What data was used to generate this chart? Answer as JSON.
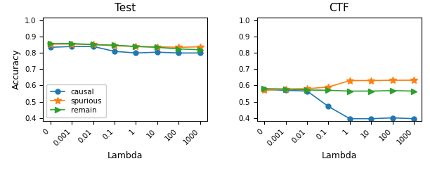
{
  "x_labels": [
    "0",
    "0.001",
    "0.01",
    "0.1",
    "1",
    "10",
    "100",
    "1000"
  ],
  "x_positions": [
    0,
    1,
    2,
    3,
    4,
    5,
    6,
    7
  ],
  "test": {
    "causal": [
      0.835,
      0.84,
      0.84,
      0.81,
      0.8,
      0.805,
      0.8,
      0.8
    ],
    "spurious": [
      0.855,
      0.855,
      0.852,
      0.845,
      0.84,
      0.838,
      0.835,
      0.838
    ],
    "remain": [
      0.858,
      0.858,
      0.852,
      0.848,
      0.84,
      0.835,
      0.825,
      0.82
    ]
  },
  "ctf": {
    "causal": [
      0.575,
      0.57,
      0.565,
      0.47,
      0.395,
      0.395,
      0.4,
      0.395
    ],
    "spurious": [
      0.57,
      0.578,
      0.58,
      0.59,
      0.63,
      0.63,
      0.632,
      0.632
    ],
    "remain": [
      0.58,
      0.578,
      0.572,
      0.57,
      0.565,
      0.565,
      0.568,
      0.565
    ]
  },
  "colors": {
    "causal": "#1f77b4",
    "spurious": "#ff7f0e",
    "remain": "#2ca02c"
  },
  "markers": {
    "causal": "o",
    "spurious": "*",
    "remain": ">"
  },
  "test_ylim": [
    0.38,
    1.02
  ],
  "ctf_ylim": [
    0.38,
    1.02
  ],
  "yticks": [
    0.4,
    0.5,
    0.6,
    0.7,
    0.8,
    0.9,
    1.0
  ],
  "title_test": "Test",
  "title_ctf": "CTF",
  "xlabel": "Lambda",
  "ylabel": "Accuracy",
  "legend_labels": [
    "causal",
    "spurious",
    "remain"
  ]
}
